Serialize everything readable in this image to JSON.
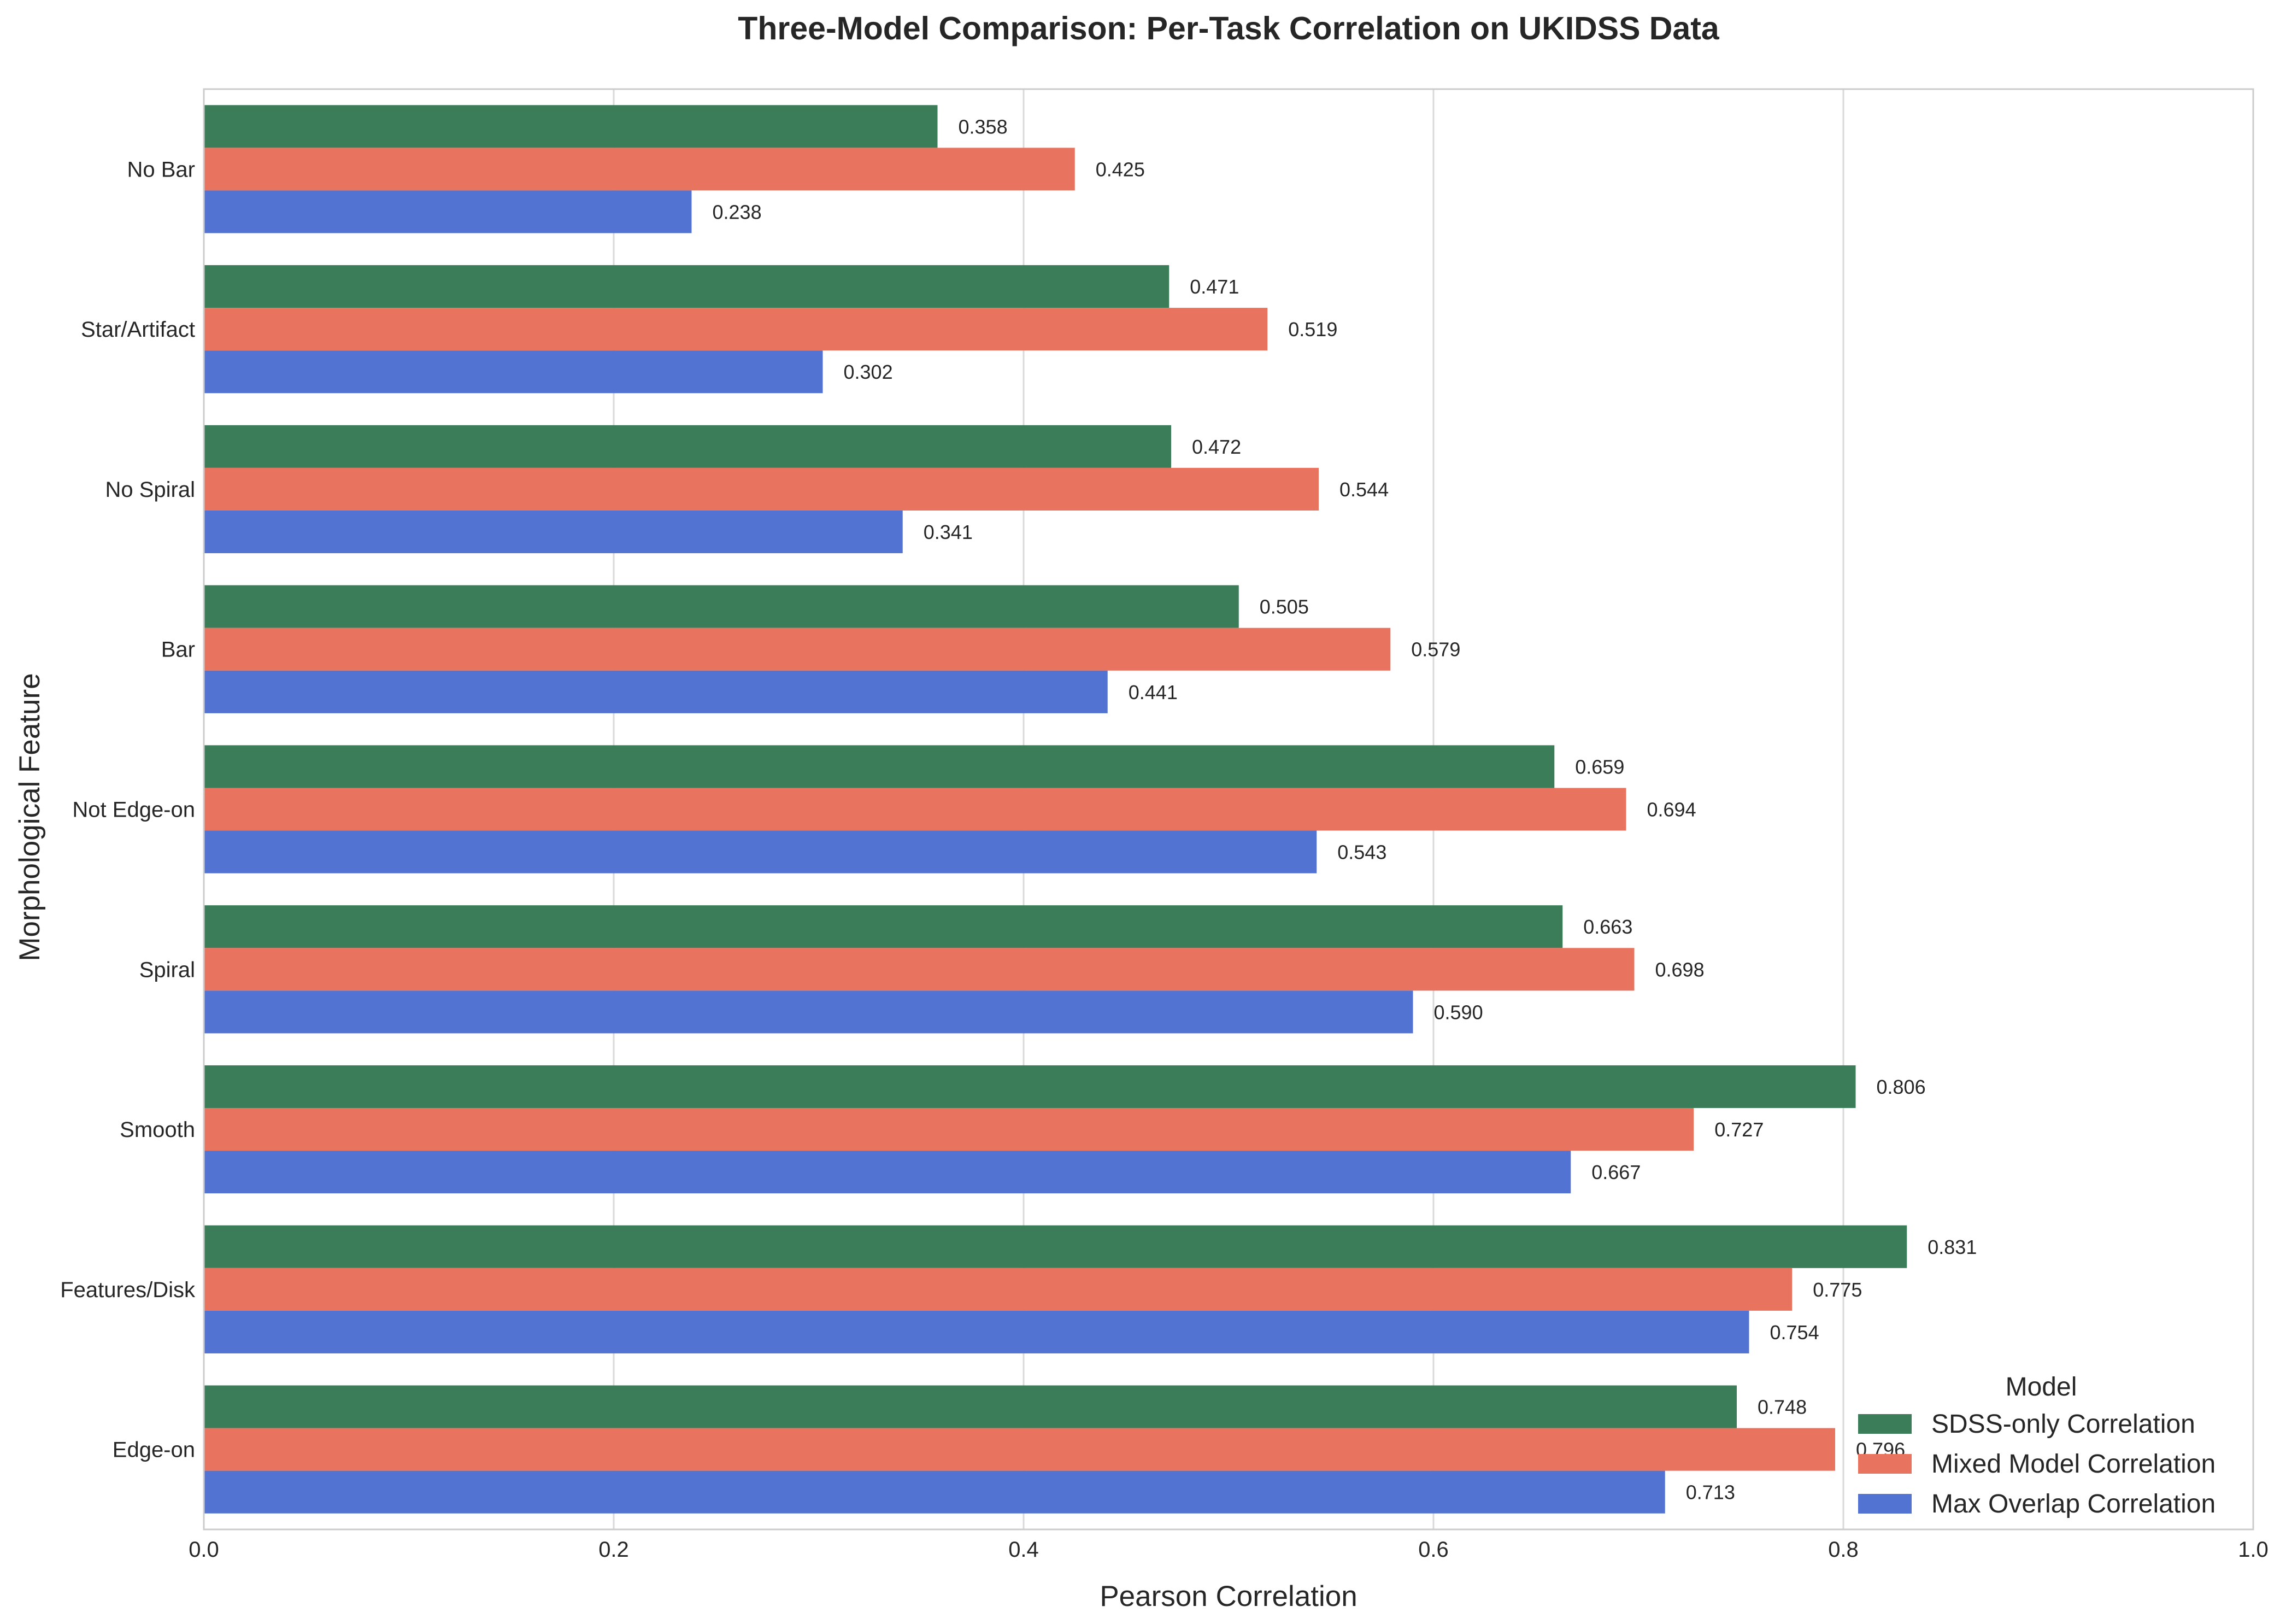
{
  "chart_data": {
    "type": "bar",
    "orientation": "horizontal",
    "title": "Three-Model Comparison: Per-Task Correlation on UKIDSS Data",
    "xlabel": "Pearson Correlation",
    "ylabel": "Morphological Feature",
    "xlim": [
      0.0,
      1.0
    ],
    "xticks": [
      "0.0",
      "0.2",
      "0.4",
      "0.6",
      "0.8",
      "1.0"
    ],
    "grid": true,
    "legend": {
      "title": "Model",
      "placement": "lower-right"
    },
    "categories": [
      "No Bar",
      "Star/Artifact",
      "No Spiral",
      "Bar",
      "Not Edge-on",
      "Spiral",
      "Smooth",
      "Features/Disk",
      "Edge-on"
    ],
    "series": [
      {
        "name": "SDSS-only Correlation",
        "color": "#3a7d58",
        "values": [
          0.358,
          0.471,
          0.472,
          0.505,
          0.659,
          0.663,
          0.806,
          0.831,
          0.748
        ],
        "labels": [
          "0.358",
          "0.471",
          "0.472",
          "0.505",
          "0.659",
          "0.663",
          "0.806",
          "0.831",
          "0.748"
        ]
      },
      {
        "name": "Mixed Model Correlation",
        "color": "#e8735f",
        "values": [
          0.425,
          0.519,
          0.544,
          0.579,
          0.694,
          0.698,
          0.727,
          0.775,
          0.796
        ],
        "labels": [
          "0.425",
          "0.519",
          "0.544",
          "0.579",
          "0.694",
          "0.698",
          "0.727",
          "0.775",
          "0.796"
        ]
      },
      {
        "name": "Max Overlap Correlation",
        "color": "#5373d2",
        "values": [
          0.238,
          0.302,
          0.341,
          0.441,
          0.543,
          0.59,
          0.667,
          0.754,
          0.713
        ],
        "labels": [
          "0.238",
          "0.302",
          "0.341",
          "0.441",
          "0.543",
          "0.590",
          "0.667",
          "0.754",
          "0.713"
        ]
      }
    ]
  }
}
